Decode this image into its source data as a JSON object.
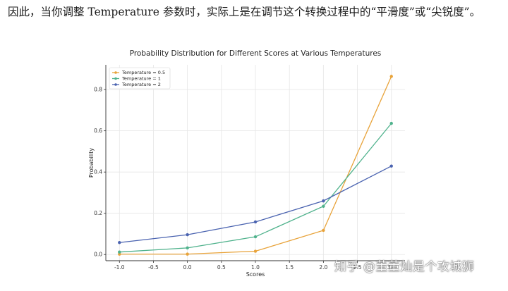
{
  "paragraph": "因此，当你调整 Temperature 参数时，实际上是在调节这个转换过程中的“平滑度”或“尖锐度”。",
  "watermark": "知乎 @董董灿是个攻城狮",
  "chart_data": {
    "type": "line",
    "title": "Probability Distribution for Different Scores at Various Temperatures",
    "xlabel": "Scores",
    "ylabel": "Probability",
    "x": [
      -1.0,
      0.0,
      1.0,
      2.0,
      3.0
    ],
    "xlim": [
      -1.2,
      3.2
    ],
    "ylim": [
      -0.03,
      0.92
    ],
    "xticks": [
      "-1.0",
      "-0.5",
      "0.0",
      "0.5",
      "1.0",
      "1.5",
      "2.0",
      "2.5",
      "3.0"
    ],
    "yticks": [
      "0.0",
      "0.2",
      "0.4",
      "0.6",
      "0.8"
    ],
    "grid": true,
    "legend": "top-left",
    "series": [
      {
        "name": "Temperature = 0.5",
        "color": "#e8a33a",
        "values": [
          0.002,
          0.002,
          0.016,
          0.117,
          0.864
        ]
      },
      {
        "name": "Temperature = 1",
        "color": "#4fb28c",
        "values": [
          0.012,
          0.032,
          0.086,
          0.234,
          0.636
        ]
      },
      {
        "name": "Temperature = 2",
        "color": "#4a63b0",
        "values": [
          0.058,
          0.096,
          0.158,
          0.26,
          0.429
        ]
      }
    ]
  }
}
